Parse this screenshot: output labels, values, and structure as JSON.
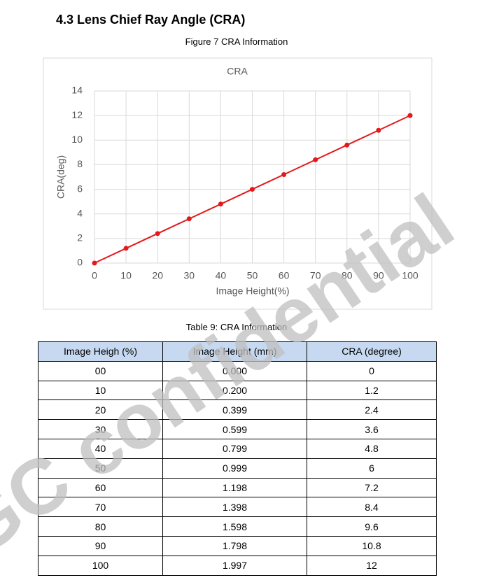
{
  "heading": "4.3  Lens Chief Ray Angle (CRA)",
  "figure_caption": "Figure 7 CRA Information",
  "chart_data": {
    "type": "line",
    "title": "CRA",
    "xlabel": "Image Height(%)",
    "ylabel": "CRA(deg)",
    "x": [
      0,
      10,
      20,
      30,
      40,
      50,
      60,
      70,
      80,
      90,
      100
    ],
    "values": [
      0,
      1.2,
      2.4,
      3.6,
      4.8,
      6,
      7.2,
      8.4,
      9.6,
      10.8,
      12
    ],
    "color": "#e31a1c",
    "grid": true,
    "xlim": [
      0,
      100
    ],
    "ylim": [
      0,
      14
    ],
    "xticks": [
      0,
      10,
      20,
      30,
      40,
      50,
      60,
      70,
      80,
      90,
      100
    ],
    "yticks": [
      0,
      2,
      4,
      6,
      8,
      10,
      12,
      14
    ]
  },
  "table_caption": "Table 9: CRA Information",
  "table": {
    "columns": [
      "Image Heigh (%)",
      "Image Height (mm)",
      "CRA (degree)"
    ],
    "rows": [
      [
        "00",
        "0.000",
        "0"
      ],
      [
        "10",
        "0.200",
        "1.2"
      ],
      [
        "20",
        "0.399",
        "2.4"
      ],
      [
        "30",
        "0.599",
        "3.6"
      ],
      [
        "40",
        "0.799",
        "4.8"
      ],
      [
        "50",
        "0.999",
        "6"
      ],
      [
        "60",
        "1.198",
        "7.2"
      ],
      [
        "70",
        "1.398",
        "8.4"
      ],
      [
        "80",
        "1.598",
        "9.6"
      ],
      [
        "90",
        "1.798",
        "10.8"
      ],
      [
        "100",
        "1.997",
        "12"
      ]
    ]
  },
  "watermark": "GC confidential"
}
